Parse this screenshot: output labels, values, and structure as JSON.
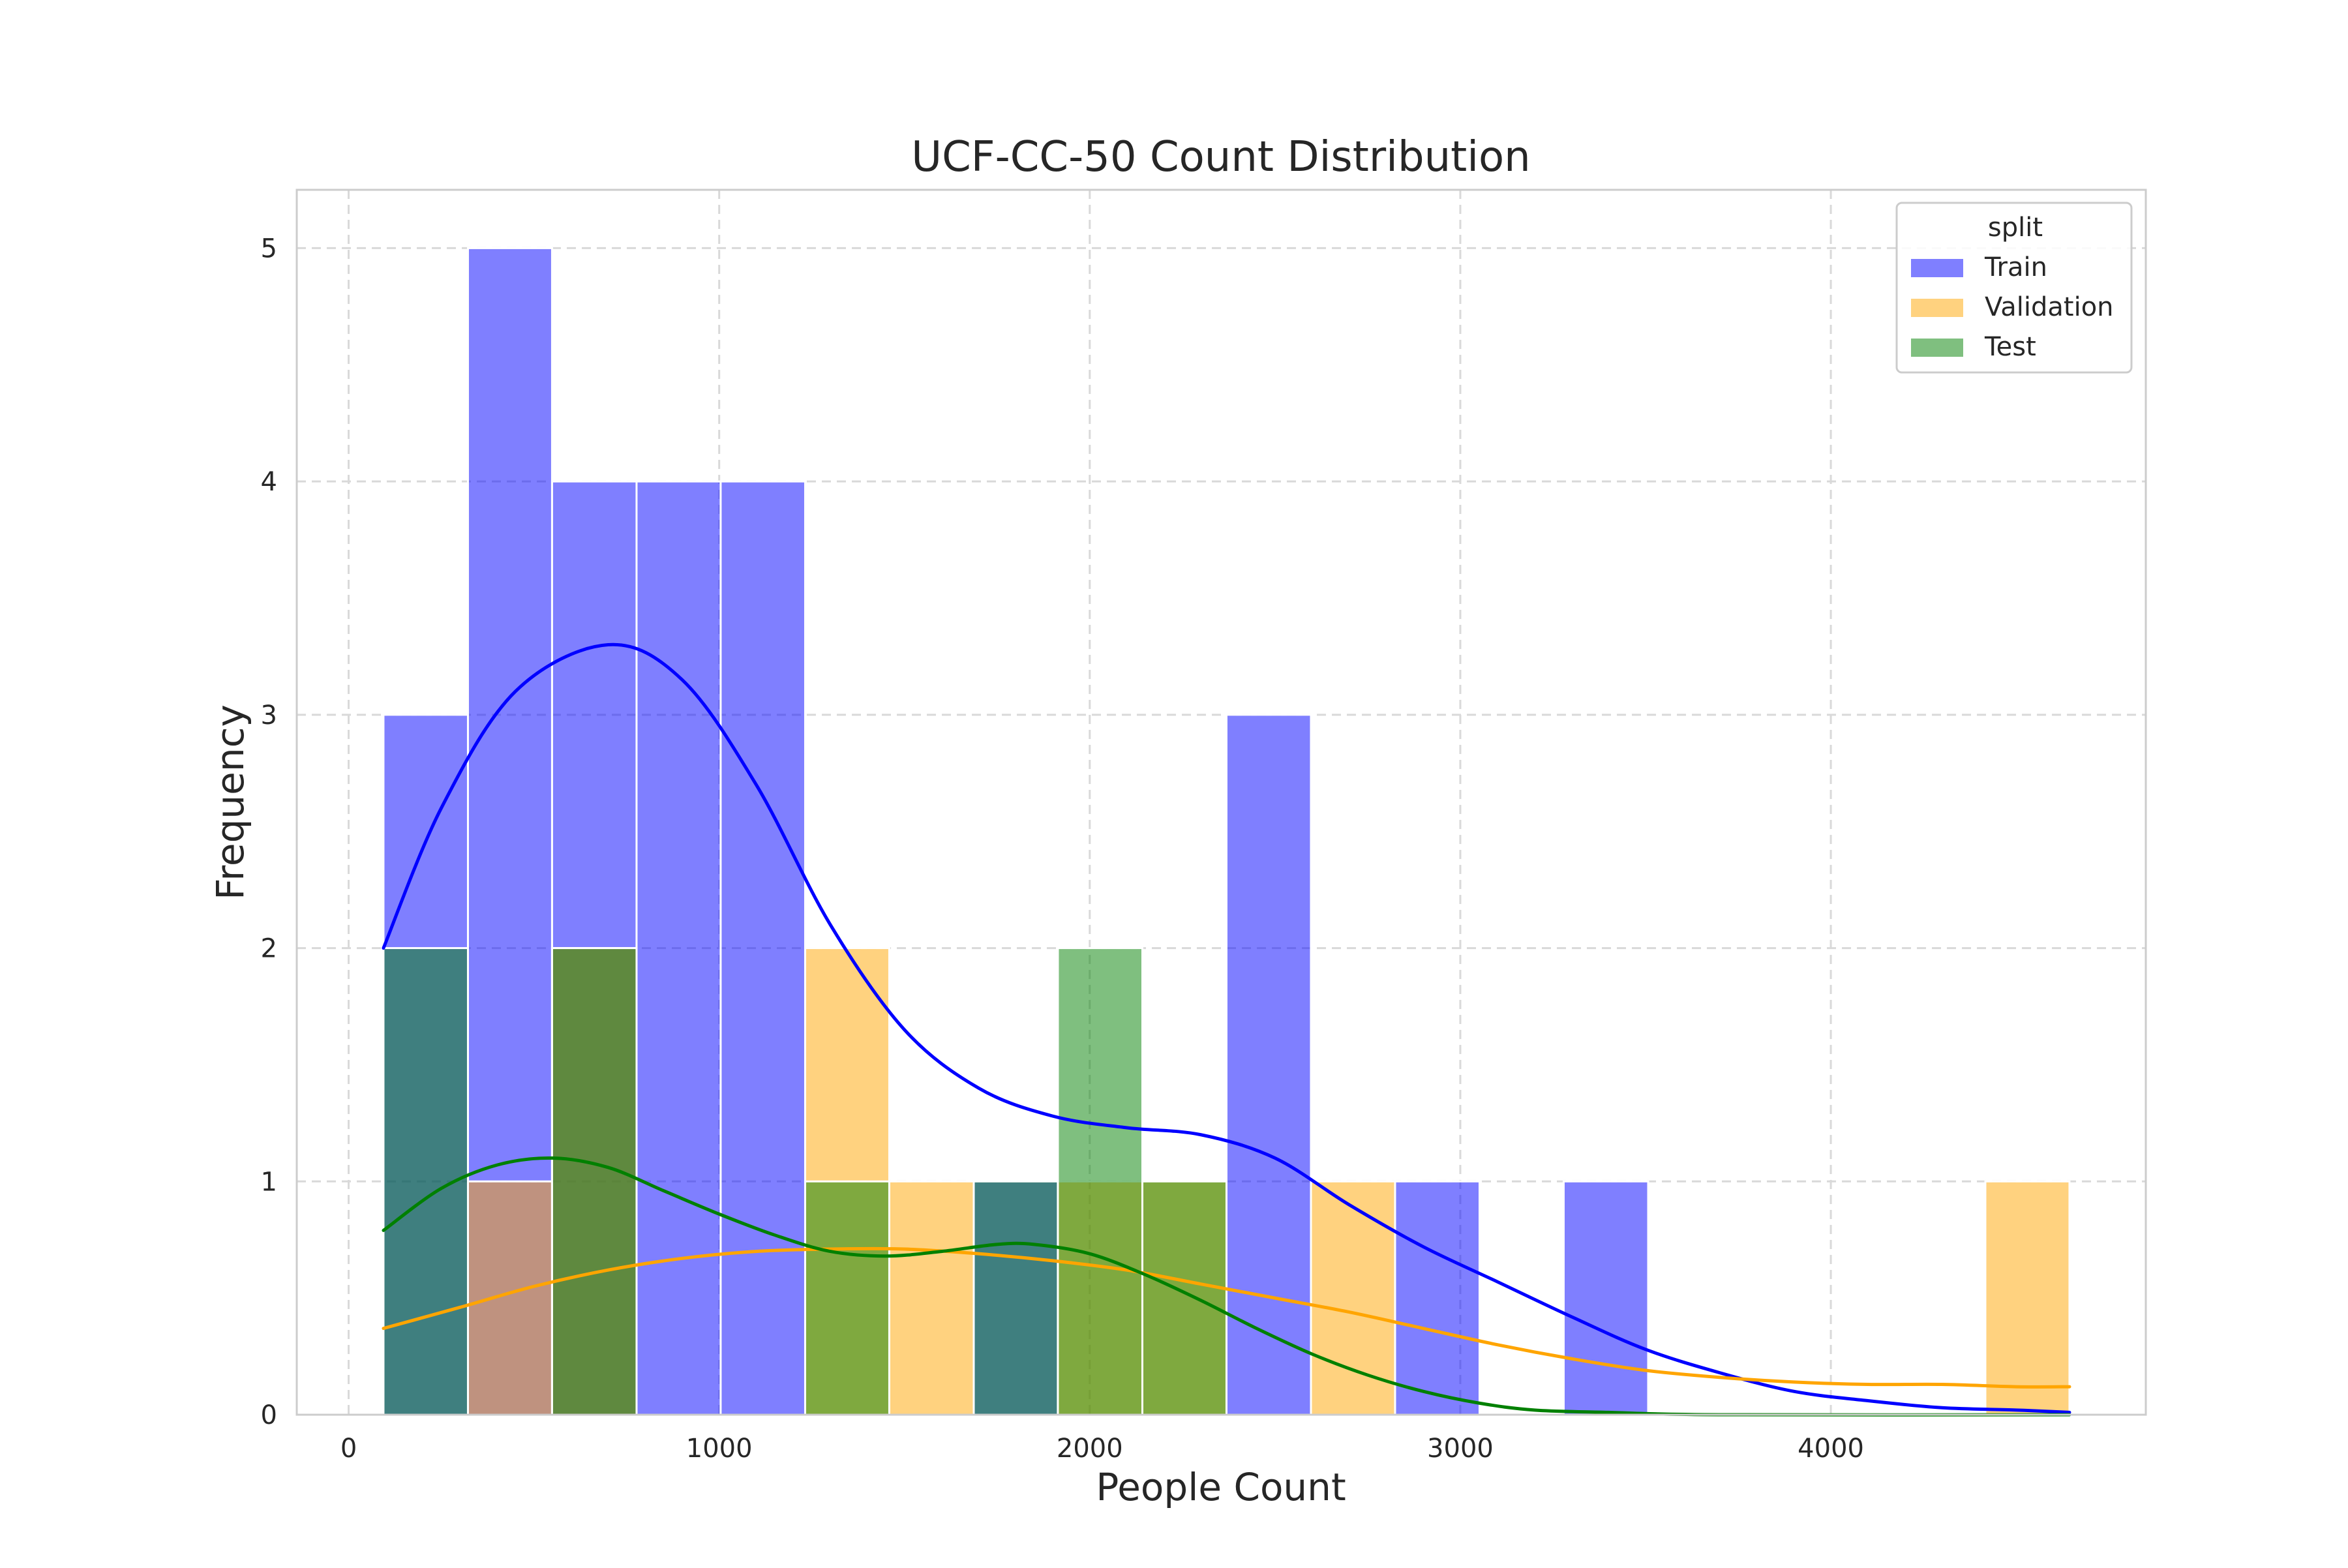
{
  "chart_data": {
    "type": "bar",
    "title": "UCF-CC-50 Count Distribution",
    "xlabel": "People Count",
    "ylabel": "Frequency",
    "xlim": [
      -140,
      4850
    ],
    "ylim": [
      0,
      5.25
    ],
    "x_ticks": [
      0,
      1000,
      2000,
      3000,
      4000
    ],
    "x_tick_labels": [
      "0",
      "1000",
      "2000",
      "3000",
      "4000"
    ],
    "y_ticks": [
      0,
      1,
      2,
      3,
      4,
      5
    ],
    "y_tick_labels": [
      "0",
      "1",
      "2",
      "3",
      "4",
      "5"
    ],
    "grid": true,
    "grid_style": "dashed",
    "legend": {
      "title": "split",
      "position": "top-right",
      "entries": [
        "Train",
        "Validation",
        "Test"
      ]
    },
    "bin_edges": [
      94,
      322,
      549,
      777,
      1004,
      1232,
      1459,
      1687,
      1914,
      2142,
      2369,
      2597,
      2824,
      3052,
      3279,
      3507,
      3734,
      3962,
      4189,
      4417,
      4644
    ],
    "series": [
      {
        "name": "Train",
        "color": "#0000ff",
        "counts": [
          3,
          5,
          4,
          4,
          4,
          0,
          0,
          1,
          0,
          0,
          3,
          0,
          1,
          0,
          1,
          0,
          0,
          0,
          0,
          0
        ],
        "kde": [
          [
            94,
            2.0
          ],
          [
            250,
            2.6
          ],
          [
            450,
            3.1
          ],
          [
            700,
            3.3
          ],
          [
            900,
            3.15
          ],
          [
            1100,
            2.7
          ],
          [
            1300,
            2.1
          ],
          [
            1500,
            1.65
          ],
          [
            1700,
            1.4
          ],
          [
            1900,
            1.28
          ],
          [
            2100,
            1.23
          ],
          [
            2300,
            1.2
          ],
          [
            2500,
            1.1
          ],
          [
            2700,
            0.9
          ],
          [
            2900,
            0.72
          ],
          [
            3100,
            0.57
          ],
          [
            3300,
            0.42
          ],
          [
            3500,
            0.28
          ],
          [
            3700,
            0.18
          ],
          [
            3900,
            0.1
          ],
          [
            4100,
            0.06
          ],
          [
            4300,
            0.03
          ],
          [
            4500,
            0.02
          ],
          [
            4644,
            0.01
          ]
        ]
      },
      {
        "name": "Validation",
        "color": "#ffa500",
        "counts": [
          0,
          1,
          2,
          0,
          0,
          2,
          1,
          0,
          1,
          1,
          0,
          1,
          0,
          0,
          0,
          0,
          0,
          0,
          0,
          1
        ],
        "kde": [
          [
            94,
            0.37
          ],
          [
            300,
            0.46
          ],
          [
            500,
            0.55
          ],
          [
            700,
            0.62
          ],
          [
            900,
            0.67
          ],
          [
            1100,
            0.7
          ],
          [
            1300,
            0.71
          ],
          [
            1500,
            0.71
          ],
          [
            1700,
            0.69
          ],
          [
            1900,
            0.66
          ],
          [
            2100,
            0.62
          ],
          [
            2300,
            0.56
          ],
          [
            2500,
            0.5
          ],
          [
            2700,
            0.44
          ],
          [
            2900,
            0.37
          ],
          [
            3100,
            0.3
          ],
          [
            3300,
            0.24
          ],
          [
            3500,
            0.19
          ],
          [
            3700,
            0.16
          ],
          [
            3900,
            0.14
          ],
          [
            4100,
            0.13
          ],
          [
            4300,
            0.13
          ],
          [
            4500,
            0.12
          ],
          [
            4644,
            0.12
          ]
        ]
      },
      {
        "name": "Test",
        "color": "#008000",
        "counts": [
          2,
          0,
          2,
          0,
          0,
          1,
          0,
          1,
          2,
          1,
          0,
          0,
          0,
          0,
          0,
          0,
          0,
          0,
          0,
          0
        ],
        "kde": [
          [
            94,
            0.79
          ],
          [
            250,
            0.97
          ],
          [
            400,
            1.07
          ],
          [
            550,
            1.1
          ],
          [
            700,
            1.06
          ],
          [
            850,
            0.96
          ],
          [
            1000,
            0.86
          ],
          [
            1150,
            0.77
          ],
          [
            1300,
            0.7
          ],
          [
            1450,
            0.68
          ],
          [
            1600,
            0.7
          ],
          [
            1750,
            0.73
          ],
          [
            1850,
            0.73
          ],
          [
            2000,
            0.69
          ],
          [
            2150,
            0.6
          ],
          [
            2300,
            0.49
          ],
          [
            2450,
            0.37
          ],
          [
            2600,
            0.26
          ],
          [
            2750,
            0.17
          ],
          [
            2900,
            0.1
          ],
          [
            3050,
            0.05
          ],
          [
            3200,
            0.02
          ],
          [
            3400,
            0.01
          ],
          [
            3700,
            0.0
          ],
          [
            4644,
            0.0
          ]
        ]
      }
    ]
  }
}
